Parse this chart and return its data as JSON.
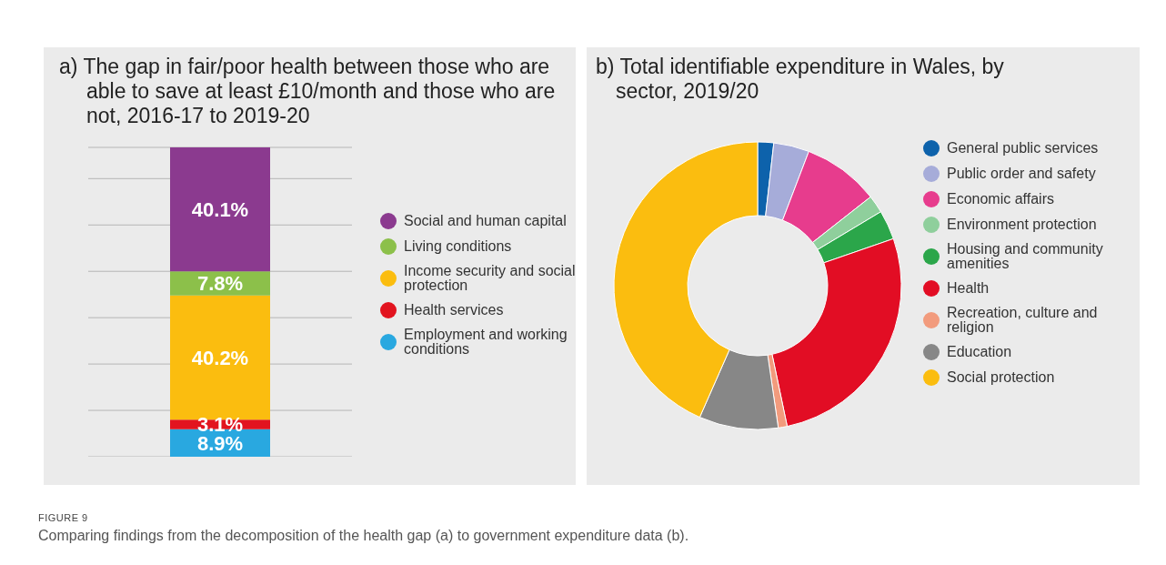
{
  "chart_data": [
    {
      "type": "bar",
      "title": "a) The gap in fair/poor health between those who are able to save at least £10/month and those who are not, 2016-17 to 2019-20",
      "categories": [
        null
      ],
      "stacked": true,
      "tick_labels": false,
      "grid": "y",
      "legend": "right",
      "series": [
        {
          "name": "Employment and working conditions",
          "color": "#29a8e0",
          "values": [
            8.9
          ],
          "value_labels": [
            "8.9%"
          ]
        },
        {
          "name": "Health services",
          "color": "#e2141f",
          "values": [
            3.1
          ],
          "value_labels": [
            "3.1%"
          ]
        },
        {
          "name": "Income security and social protection",
          "color": "#fbbd0f",
          "values": [
            40.2
          ],
          "value_labels": [
            "40.2%"
          ]
        },
        {
          "name": "Living conditions",
          "color": "#8cc04a",
          "values": [
            7.8
          ],
          "value_labels": [
            "7.8%"
          ]
        },
        {
          "name": "Social and human capital",
          "color": "#8b3a8f",
          "values": [
            40.1
          ],
          "value_labels": [
            "40.1%"
          ]
        }
      ],
      "annotations": [
        "FIGURE 9",
        "Comparing findings from the decomposition of the health gap (a) to government expenditure data (b)."
      ]
    },
    {
      "type": "donut",
      "title": "b) Total identifiable expenditure in Wales, by sector, 2019/20",
      "legend": "right",
      "categories": [
        "General public services",
        "Public order and safety",
        "Economic affairs",
        "Environment protection",
        "Housing and community amenities",
        "Health",
        "Recreation, culture and religion",
        "Education",
        "Social protection"
      ],
      "values": [
        1.8,
        4,
        8.6,
        2,
        3.3,
        27,
        1,
        8.9,
        43.4
      ],
      "colors": [
        "#0d62ab",
        "#a6acd9",
        "#e73c8d",
        "#8fcf9c",
        "#2ba64a",
        "#e20d24",
        "#f29b7d",
        "#878787",
        "#fbbd0f"
      ]
    }
  ]
}
